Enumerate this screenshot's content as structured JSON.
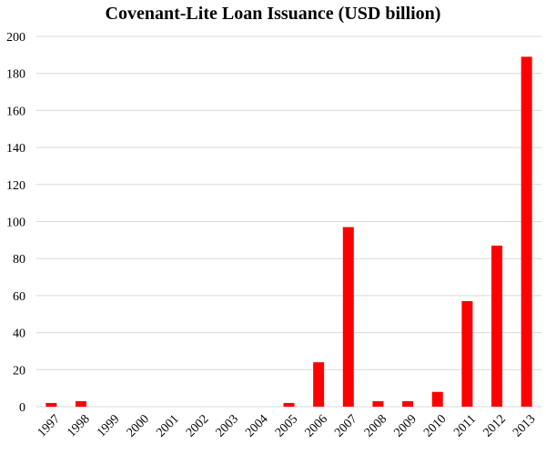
{
  "chart_data": {
    "type": "bar",
    "title": "Covenant-Lite Loan Issuance (USD billion)",
    "xlabel": "",
    "ylabel": "",
    "categories": [
      "1997",
      "1998",
      "1999",
      "2000",
      "2001",
      "2002",
      "2003",
      "2004",
      "2005",
      "2006",
      "2007",
      "2008",
      "2009",
      "2010",
      "2011",
      "2012",
      "2013"
    ],
    "values": [
      2,
      3,
      0,
      0,
      0,
      0,
      0,
      0,
      2,
      24,
      97,
      3,
      3,
      8,
      57,
      87,
      189
    ],
    "ylim": [
      0,
      200
    ],
    "yticks": [
      0,
      20,
      40,
      60,
      80,
      100,
      120,
      140,
      160,
      180,
      200
    ],
    "grid": true,
    "legend": "none",
    "bar_color": "#ff0000"
  }
}
